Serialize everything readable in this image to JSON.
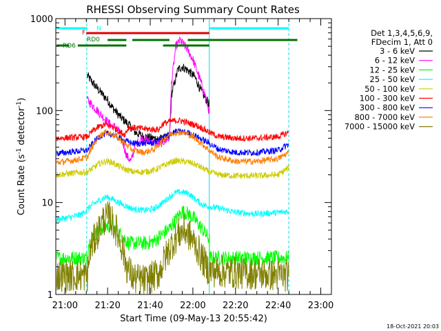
{
  "chart_data": {
    "type": "line",
    "title": "RHESSI Observing Summary Count Rates",
    "xlabel": "Start Time (09-May-13 20:55:42)",
    "ylabel_parts": [
      "Count Rate (s",
      "-1",
      " detector",
      "-1",
      ")"
    ],
    "yscale": "log",
    "ylim": [
      1,
      1000
    ],
    "y_ticks": [
      1,
      10,
      100,
      1000
    ],
    "x_ticks": [
      "21:00",
      "21:20",
      "21:40",
      "22:00",
      "22:20",
      "22:40",
      "23:00"
    ],
    "x_tick_minutes": [
      0,
      20,
      40,
      60,
      80,
      100,
      120
    ],
    "xlim_minutes": [
      -4.3,
      125
    ],
    "legend_title": [
      "Det 1,3,4,5,6,9,",
      "FDecim 1, Att 0"
    ],
    "legend_placement": "right",
    "footer_date": "18-Oct-2021 20:03",
    "flags": [
      {
        "name": "N",
        "color": "#00ffff",
        "segments": [
          [
            -4.3,
            10.5
          ],
          [
            67.7,
            105
          ]
        ]
      },
      {
        "name": "F",
        "color": "#e00000",
        "segments": [
          [
            10,
            67.7
          ]
        ]
      },
      {
        "name": "RD0",
        "color": "#007000",
        "segments": [
          [
            20,
            28.8
          ],
          [
            31.6,
            49
          ],
          [
            57.6,
            67.7
          ],
          [
            67.7,
            109
          ]
        ]
      },
      {
        "name": "RD6",
        "color": "#007000",
        "segments": [
          [
            -4.3,
            2
          ],
          [
            6,
            28.8
          ],
          [
            46,
            67.7
          ]
        ]
      }
    ],
    "boundaries": [
      {
        "x": 10.2,
        "style": "dashed"
      },
      {
        "x": 67.7,
        "style": "solid"
      },
      {
        "x": 105,
        "style": "dashed"
      }
    ],
    "series": [
      {
        "name": "3 - 6 keV",
        "color": "#000000",
        "points": [
          [
            10.5,
            240
          ],
          [
            12,
            215
          ],
          [
            16,
            165
          ],
          [
            20,
            130
          ],
          [
            22,
            110
          ],
          [
            26,
            85
          ],
          [
            30,
            70
          ],
          [
            33,
            58
          ],
          [
            37,
            52
          ],
          [
            41,
            50
          ],
          [
            45,
            49
          ],
          [
            49,
            50
          ],
          [
            50,
            150
          ],
          [
            53,
            280
          ],
          [
            55,
            300
          ],
          [
            58,
            270
          ],
          [
            61,
            230
          ],
          [
            64,
            160
          ],
          [
            66,
            135
          ],
          [
            67.5,
            120
          ],
          [
            67.7,
            95
          ]
        ]
      },
      {
        "name": "6 - 12 keV",
        "color": "#ff00ff",
        "points": [
          [
            10.5,
            130
          ],
          [
            12,
            120
          ],
          [
            16,
            95
          ],
          [
            20,
            75
          ],
          [
            22,
            68
          ],
          [
            24,
            66
          ],
          [
            26,
            55
          ],
          [
            29,
            32
          ],
          [
            31,
            28
          ],
          [
            33,
            42
          ],
          [
            36,
            50
          ],
          [
            40,
            46
          ],
          [
            44,
            43
          ],
          [
            49,
            50
          ],
          [
            50,
            200
          ],
          [
            52,
            500
          ],
          [
            54,
            580
          ],
          [
            57,
            480
          ],
          [
            60,
            360
          ],
          [
            63,
            230
          ],
          [
            66,
            140
          ],
          [
            67.7,
            95
          ]
        ]
      },
      {
        "name": "12 - 25 keV",
        "color": "#00ff00",
        "points": [
          [
            -4.3,
            2.5
          ],
          [
            10,
            2.5
          ],
          [
            10.5,
            2.5
          ],
          [
            11,
            3.5
          ],
          [
            13,
            4.2
          ],
          [
            16,
            5
          ],
          [
            19,
            5.6
          ],
          [
            22,
            5.5
          ],
          [
            25,
            4.8
          ],
          [
            28,
            4
          ],
          [
            30,
            3.6
          ],
          [
            33,
            3.6
          ],
          [
            38,
            3.6
          ],
          [
            42,
            3.8
          ],
          [
            46,
            4.6
          ],
          [
            49,
            5.2
          ],
          [
            52,
            6.5
          ],
          [
            55,
            8
          ],
          [
            58,
            7.5
          ],
          [
            61,
            6.5
          ],
          [
            64,
            5.3
          ],
          [
            67.7,
            4
          ],
          [
            67.8,
            2.5
          ],
          [
            105,
            2.5
          ]
        ]
      },
      {
        "name": "25 - 50 keV",
        "color": "#00ffff",
        "points": [
          [
            -4.3,
            6.5
          ],
          [
            4,
            7
          ],
          [
            8,
            7.5
          ],
          [
            10.5,
            8.5
          ],
          [
            13,
            9.5
          ],
          [
            16,
            10.5
          ],
          [
            19,
            11.5
          ],
          [
            22,
            11
          ],
          [
            25,
            10
          ],
          [
            28,
            9.3
          ],
          [
            32,
            8.5
          ],
          [
            37,
            8.2
          ],
          [
            42,
            8.6
          ],
          [
            46,
            10
          ],
          [
            49,
            11.5
          ],
          [
            52,
            12.8
          ],
          [
            55,
            13
          ],
          [
            58,
            12.5
          ],
          [
            61,
            11
          ],
          [
            64,
            9.6
          ],
          [
            67.7,
            9
          ],
          [
            72,
            8.7
          ],
          [
            80,
            7.8
          ],
          [
            90,
            7.5
          ],
          [
            100,
            7.8
          ],
          [
            105,
            8
          ]
        ]
      },
      {
        "name": "50 - 100 keV",
        "color": "#cccc00",
        "points": [
          [
            -4.3,
            20
          ],
          [
            5,
            21
          ],
          [
            10.5,
            21.5
          ],
          [
            13,
            23.5
          ],
          [
            16,
            26.5
          ],
          [
            19,
            28
          ],
          [
            22,
            27.5
          ],
          [
            25,
            25
          ],
          [
            28,
            23
          ],
          [
            32,
            21.5
          ],
          [
            37,
            21.5
          ],
          [
            42,
            22.5
          ],
          [
            46,
            25
          ],
          [
            49,
            27
          ],
          [
            52,
            28.5
          ],
          [
            55,
            28
          ],
          [
            58,
            27.5
          ],
          [
            61,
            26
          ],
          [
            64,
            24
          ],
          [
            67.7,
            21.5
          ],
          [
            72,
            20
          ],
          [
            80,
            19.5
          ],
          [
            90,
            19.5
          ],
          [
            100,
            20
          ],
          [
            105,
            24
          ]
        ]
      },
      {
        "name": "100 - 300 keV",
        "color": "#ff0000",
        "points": [
          [
            -4.3,
            50
          ],
          [
            5,
            51
          ],
          [
            10.5,
            52
          ],
          [
            13,
            60
          ],
          [
            16,
            67
          ],
          [
            19,
            70
          ],
          [
            22,
            67
          ],
          [
            25,
            60
          ],
          [
            28,
            55
          ],
          [
            30,
            66
          ],
          [
            38,
            63
          ],
          [
            44,
            62
          ],
          [
            46,
            72
          ],
          [
            49,
            76
          ],
          [
            52,
            78
          ],
          [
            55,
            77
          ],
          [
            58,
            73
          ],
          [
            61,
            70
          ],
          [
            64,
            65
          ],
          [
            67.7,
            58
          ],
          [
            72,
            52
          ],
          [
            80,
            50
          ],
          [
            90,
            50
          ],
          [
            100,
            52
          ],
          [
            105,
            58
          ]
        ]
      },
      {
        "name": "300 - 800 keV",
        "color": "#0000ff",
        "points": [
          [
            -4.3,
            34
          ],
          [
            5,
            36
          ],
          [
            10.5,
            37
          ],
          [
            13,
            44
          ],
          [
            16,
            52
          ],
          [
            19,
            56
          ],
          [
            22,
            55
          ],
          [
            25,
            51
          ],
          [
            28,
            47
          ],
          [
            32,
            44
          ],
          [
            37,
            44
          ],
          [
            42,
            45
          ],
          [
            46,
            51
          ],
          [
            49,
            56
          ],
          [
            52,
            59
          ],
          [
            55,
            59
          ],
          [
            58,
            57
          ],
          [
            61,
            53
          ],
          [
            64,
            49
          ],
          [
            67.7,
            44
          ],
          [
            72,
            38
          ],
          [
            80,
            35
          ],
          [
            90,
            35
          ],
          [
            100,
            37
          ],
          [
            105,
            43
          ]
        ]
      },
      {
        "name": "800 - 7000 keV",
        "color": "#ff8000",
        "points": [
          [
            -4.3,
            27
          ],
          [
            5,
            29
          ],
          [
            10.5,
            31
          ],
          [
            13,
            41
          ],
          [
            16,
            53
          ],
          [
            19,
            58
          ],
          [
            22,
            56
          ],
          [
            25,
            50
          ],
          [
            28,
            44
          ],
          [
            32,
            37
          ],
          [
            37,
            35
          ],
          [
            42,
            38
          ],
          [
            46,
            48
          ],
          [
            49,
            55
          ],
          [
            52,
            58
          ],
          [
            55,
            58
          ],
          [
            58,
            55
          ],
          [
            61,
            50
          ],
          [
            64,
            44
          ],
          [
            67.7,
            37
          ],
          [
            72,
            31
          ],
          [
            80,
            28
          ],
          [
            90,
            28
          ],
          [
            100,
            30
          ],
          [
            105,
            35
          ]
        ]
      },
      {
        "name": "7000 - 15000 keV",
        "color": "#808000",
        "points": [
          [
            -4.3,
            1.6
          ],
          [
            10,
            1.6
          ],
          [
            10.5,
            1.6
          ],
          [
            12,
            3.2
          ],
          [
            15,
            4.5
          ],
          [
            18,
            6.5
          ],
          [
            21,
            7
          ],
          [
            24,
            5
          ],
          [
            27,
            3.2
          ],
          [
            29,
            2
          ],
          [
            32,
            1.5
          ],
          [
            38,
            1.4
          ],
          [
            44,
            1.7
          ],
          [
            47,
            2.5
          ],
          [
            50,
            3.5
          ],
          [
            53,
            4.5
          ],
          [
            56,
            5
          ],
          [
            59,
            4.2
          ],
          [
            62,
            3.2
          ],
          [
            65,
            2.3
          ],
          [
            67.7,
            1.8
          ],
          [
            105,
            1.6
          ]
        ]
      }
    ]
  }
}
